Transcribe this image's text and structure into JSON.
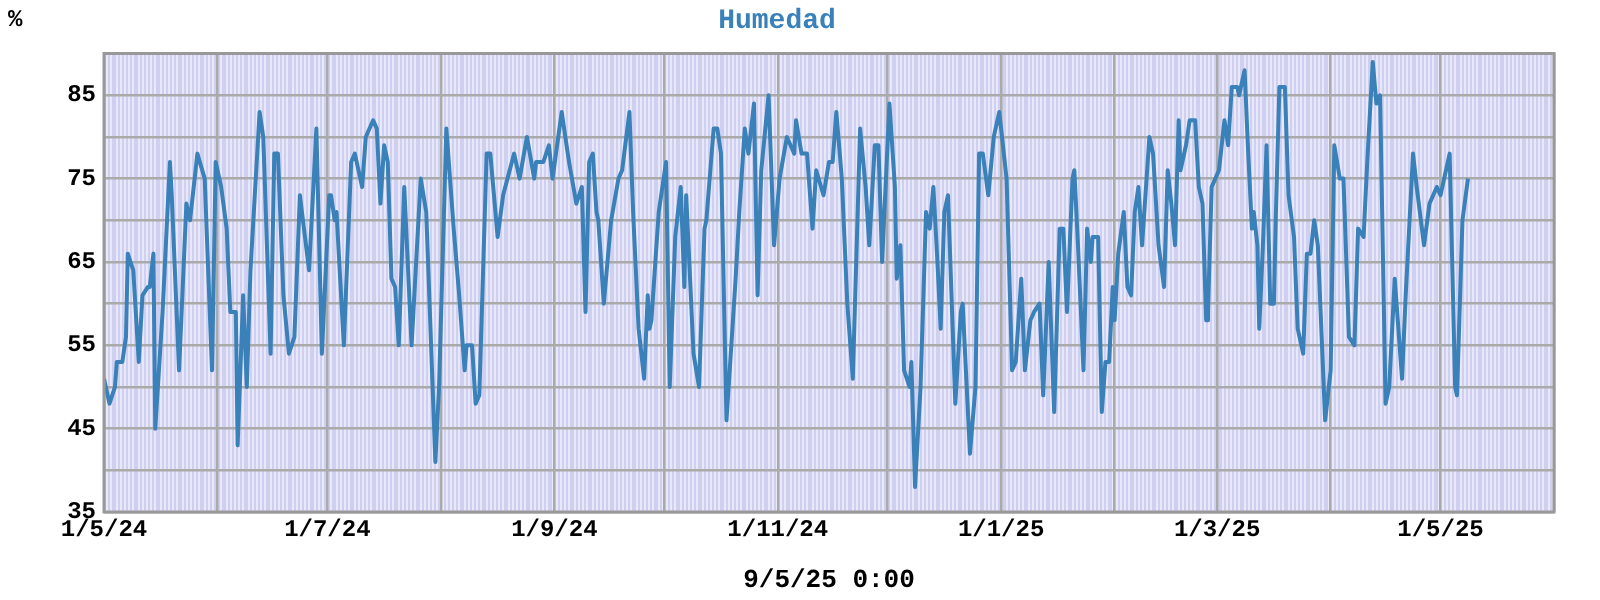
{
  "chart_data": {
    "type": "line",
    "title": "Humedad",
    "ylabel": "%",
    "xlabel": "9/5/25 0:00",
    "xlim": [
      "2024-05-01",
      "2025-06-01"
    ],
    "xticks": [
      {
        "value": "2024-05-01",
        "label": "1/5/24"
      },
      {
        "value": "2024-06-01",
        "label": null
      },
      {
        "value": "2024-07-01",
        "label": "1/7/24"
      },
      {
        "value": "2024-08-01",
        "label": null
      },
      {
        "value": "2024-09-01",
        "label": "1/9/24"
      },
      {
        "value": "2024-10-01",
        "label": null
      },
      {
        "value": "2024-11-01",
        "label": "1/11/24"
      },
      {
        "value": "2024-12-01",
        "label": null
      },
      {
        "value": "2025-01-01",
        "label": "1/1/25"
      },
      {
        "value": "2025-02-01",
        "label": null
      },
      {
        "value": "2025-03-01",
        "label": "1/3/25"
      },
      {
        "value": "2025-04-01",
        "label": null
      },
      {
        "value": "2025-05-01",
        "label": "1/5/25"
      }
    ],
    "ylim": [
      35,
      90
    ],
    "yticks": [
      35,
      {
        "value": 40,
        "label": null
      },
      45,
      {
        "value": 50,
        "label": null
      },
      55,
      {
        "value": 60,
        "label": null
      },
      65,
      {
        "value": 70,
        "label": null
      },
      75,
      {
        "value": 80,
        "label": null
      },
      85
    ],
    "grid": true,
    "marker": "none",
    "line_style": "solid",
    "series": [
      {
        "color": "#3a80b9",
        "x": [
          "2024-05-01",
          "2024-05-02T12:00",
          "2024-05-04",
          "2024-05-04T12:00",
          "2024-05-06",
          "2024-05-07",
          "2024-05-07T12:00",
          "2024-05-09",
          "2024-05-10T12:00",
          "2024-05-11T12:00",
          "2024-05-13",
          "2024-05-13T12:00",
          "2024-05-14T12:00",
          "2024-05-15",
          "2024-05-17",
          "2024-05-19",
          "2024-05-19T12:00",
          "2024-05-21T12:00",
          "2024-05-23T12:00",
          "2024-05-24T12:00",
          "2024-05-26T12:00",
          "2024-05-28T12:00",
          "2024-05-30T12:00",
          "2024-05-31T12:00",
          "2024-06-02",
          "2024-06-03T12:00",
          "2024-06-04T12:00",
          "2024-06-06",
          "2024-06-06T12:00",
          "2024-06-08",
          "2024-06-09",
          "2024-06-10",
          "2024-06-12T12:00",
          "2024-06-13T12:00",
          "2024-06-15T12:00",
          "2024-06-16T12:00",
          "2024-06-17T12:00",
          "2024-06-19",
          "2024-06-20T12:00",
          "2024-06-22",
          "2024-06-23T12:00",
          "2024-06-26",
          "2024-06-28",
          "2024-06-29T12:00",
          "2024-07-01T12:00",
          "2024-07-02",
          "2024-07-03",
          "2024-07-03T12:00",
          "2024-07-05T12:00",
          "2024-07-07T12:00",
          "2024-07-08T12:00",
          "2024-07-10T12:00",
          "2024-07-11T12:00",
          "2024-07-13T12:00",
          "2024-07-14T12:00",
          "2024-07-15T12:00",
          "2024-07-16T12:00",
          "2024-07-17T12:00",
          "2024-07-18T12:00",
          "2024-07-19T12:00",
          "2024-07-20T12:00",
          "2024-07-22",
          "2024-07-24",
          "2024-07-26T12:00",
          "2024-07-28",
          "2024-07-30T12:00",
          "2024-07-31T12:00",
          "2024-08-02T12:00",
          "2024-08-04T12:00",
          "2024-08-06",
          "2024-08-07T12:00",
          "2024-08-08",
          "2024-08-09T12:00",
          "2024-08-10T12:00",
          "2024-08-11T12:00",
          "2024-08-13T12:00",
          "2024-08-14T12:00",
          "2024-08-16T12:00",
          "2024-08-18",
          "2024-08-21",
          "2024-08-22T12:00",
          "2024-08-24T12:00",
          "2024-08-26T12:00",
          "2024-08-27",
          "2024-08-29",
          "2024-08-30T12:00",
          "2024-08-31T12:00",
          "2024-09-03",
          "2024-09-05",
          "2024-09-07",
          "2024-09-08T12:00",
          "2024-09-09T12:00",
          "2024-09-10T12:00",
          "2024-09-11T12:00",
          "2024-09-12T12:00",
          "2024-09-13",
          "2024-09-14T12:00",
          "2024-09-16T12:00",
          "2024-09-18T12:00",
          "2024-09-19T12:00",
          "2024-09-21T12:00",
          "2024-09-22T12:00",
          "2024-09-24",
          "2024-09-25T12:00",
          "2024-09-26T12:00",
          "2024-09-27",
          "2024-09-27T12:00",
          "2024-09-29T12:00",
          "2024-10-01T12:00",
          "2024-10-02T12:00",
          "2024-10-04",
          "2024-10-05T12:00",
          "2024-10-06T12:00",
          "2024-10-07",
          "2024-10-09",
          "2024-10-10T12:00",
          "2024-10-12",
          "2024-10-12T12:00",
          "2024-10-14T12:00",
          "2024-10-15T12:00",
          "2024-10-16T12:00",
          "2024-10-18",
          "2024-10-20T12:00",
          "2024-10-21T12:00",
          "2024-10-23",
          "2024-10-24",
          "2024-10-25T12:00",
          "2024-10-26T12:00",
          "2024-10-27T12:00",
          "2024-10-29T12:00",
          "2024-10-31",
          "2024-11-01T12:00",
          "2024-11-03T12:00",
          "2024-11-04T12:00",
          "2024-11-05T12:00",
          "2024-11-06",
          "2024-11-07T12:00",
          "2024-11-09",
          "2024-11-10T12:00",
          "2024-11-11T12:00",
          "2024-11-13T12:00",
          "2024-11-15",
          "2024-11-16",
          "2024-11-17",
          "2024-11-18T12:00",
          "2024-11-20",
          "2024-11-21T12:00",
          "2024-11-23T12:00",
          "2024-11-25",
          "2024-11-26",
          "2024-11-27T12:00",
          "2024-11-28T12:00",
          "2024-11-29T12:00",
          "2024-12-01T12:00",
          "2024-12-03",
          "2024-12-03T12:00",
          "2024-12-04T12:00",
          "2024-12-05T12:00",
          "2024-12-07",
          "2024-12-07T12:00",
          "2024-12-08T12:00",
          "2024-12-10",
          "2024-12-11T12:00",
          "2024-12-12T12:00",
          "2024-12-13T12:00",
          "2024-12-14T12:00",
          "2024-12-15T12:00",
          "2024-12-16T12:00",
          "2024-12-17T12:00",
          "2024-12-19T12:00",
          "2024-12-21",
          "2024-12-21T12:00",
          "2024-12-23T12:00",
          "2024-12-25",
          "2024-12-26",
          "2024-12-27",
          "2024-12-28T12:00",
          "2024-12-30",
          "2024-12-31T12:00",
          "2025-01-02T12:00",
          "2025-01-04",
          "2025-01-05",
          "2025-01-06T12:00",
          "2025-01-07T12:00",
          "2025-01-09",
          "2025-01-10",
          "2025-01-11T12:00",
          "2025-01-12T12:00",
          "2025-01-14",
          "2025-01-15T12:00",
          "2025-01-17",
          "2025-01-18",
          "2025-01-19",
          "2025-01-20T12:00",
          "2025-01-21",
          "2025-01-22",
          "2025-01-23T12:00",
          "2025-01-24T12:00",
          "2025-01-25T12:00",
          "2025-01-26",
          "2025-01-27T12:00",
          "2025-01-28T12:00",
          "2025-01-29T12:00",
          "2025-01-30T12:00",
          "2025-01-31T12:00",
          "2025-02-01",
          "2025-02-02",
          "2025-02-03T12:00",
          "2025-02-04T12:00",
          "2025-02-05T12:00",
          "2025-02-06T12:00",
          "2025-02-07T12:00",
          "2025-02-08T12:00",
          "2025-02-10T12:00",
          "2025-02-11T12:00",
          "2025-02-13",
          "2025-02-14T12:00",
          "2025-02-15T12:00",
          "2025-02-16T12:00",
          "2025-02-17T12:00",
          "2025-02-18T12:00",
          "2025-02-19",
          "2025-02-20T12:00",
          "2025-02-21T12:00",
          "2025-02-23",
          "2025-02-24",
          "2025-02-25",
          "2025-02-26",
          "2025-02-26T12:00",
          "2025-02-27T12:00",
          "2025-02-28T12:00",
          "2025-03-01T12:00",
          "2025-03-03",
          "2025-03-04",
          "2025-03-05",
          "2025-03-06T12:00",
          "2025-03-07",
          "2025-03-08T12:00",
          "2025-03-09T12:00",
          "2025-03-10T12:00",
          "2025-03-11",
          "2025-03-12",
          "2025-03-12T12:00",
          "2025-03-13T12:00",
          "2025-03-14T12:00",
          "2025-03-15T12:00",
          "2025-03-16T12:00",
          "2025-03-17",
          "2025-03-18",
          "2025-03-19T12:00",
          "2025-03-20T12:00",
          "2025-03-22",
          "2025-03-23",
          "2025-03-24T12:00",
          "2025-03-25T12:00",
          "2025-03-26T12:00",
          "2025-03-27T12:00",
          "2025-03-28T12:00",
          "2025-03-30T12:00",
          "2025-04-01",
          "2025-04-02",
          "2025-04-03T12:00",
          "2025-04-04T12:00",
          "2025-04-06",
          "2025-04-07T12:00",
          "2025-04-08T12:00",
          "2025-04-10",
          "2025-04-11",
          "2025-04-12T12:00",
          "2025-04-13T12:00",
          "2025-04-14T12:00",
          "2025-04-16",
          "2025-04-17",
          "2025-04-18T12:00",
          "2025-04-20T12:00",
          "2025-04-21T12:00",
          "2025-04-23T12:00",
          "2025-04-24T12:00",
          "2025-04-26T12:00",
          "2025-04-28",
          "2025-04-30",
          "2025-05-01",
          "2025-05-03T12:00",
          "2025-05-05",
          "2025-05-05T12:00",
          "2025-05-07",
          "2025-05-08T12:00"
        ],
        "values": [
          51,
          48,
          50,
          53,
          53,
          56,
          66,
          64,
          53,
          61,
          62,
          62,
          66,
          45,
          59,
          77,
          73,
          52,
          72,
          70,
          78,
          75,
          52,
          77,
          74,
          69,
          59,
          59,
          43,
          61,
          50,
          64,
          83,
          80,
          54,
          78,
          78,
          61,
          54,
          56,
          73,
          64,
          81,
          54,
          73,
          73,
          70,
          71,
          55,
          77,
          78,
          74,
          80,
          82,
          81,
          72,
          79,
          77,
          63,
          62,
          55,
          74,
          55,
          75,
          71,
          41,
          50,
          81,
          69,
          61,
          52,
          55,
          55,
          48,
          49,
          78,
          78,
          68,
          73,
          78,
          75,
          80,
          75,
          77,
          77,
          79,
          75,
          83,
          77,
          72,
          74,
          59,
          77,
          78,
          71,
          70,
          60,
          70,
          75,
          76,
          83,
          71,
          57,
          51,
          61,
          57,
          58,
          71,
          77,
          50,
          68,
          74,
          62,
          73,
          54,
          50,
          69,
          70,
          81,
          81,
          78,
          46,
          63,
          71,
          81,
          78,
          84,
          61,
          76,
          85,
          67,
          75,
          80,
          79,
          78,
          82,
          78,
          78,
          69,
          76,
          73,
          77,
          77,
          83,
          75,
          60,
          51,
          81,
          74,
          67,
          79,
          79,
          65,
          84,
          74,
          63,
          67,
          52,
          50,
          53,
          38,
          50,
          71,
          69,
          74,
          66,
          57,
          71,
          73,
          48,
          59,
          60,
          42,
          50,
          78,
          78,
          73,
          80,
          83,
          75,
          52,
          53,
          63,
          52,
          58,
          59,
          60,
          49,
          65,
          47,
          69,
          69,
          59,
          75,
          76,
          67,
          52,
          69,
          65,
          68,
          68,
          47,
          53,
          53,
          62,
          58,
          66,
          71,
          62,
          61,
          71,
          74,
          67,
          80,
          78,
          67,
          62,
          76,
          72,
          67,
          82,
          76,
          79,
          82,
          82,
          74,
          72,
          58,
          59,
          74,
          75,
          76,
          82,
          79,
          86,
          86,
          85,
          88,
          78,
          69,
          71,
          67,
          57,
          67,
          79,
          60,
          60,
          70,
          86,
          86,
          73,
          68,
          57,
          54,
          66,
          66,
          70,
          67,
          46,
          52,
          79,
          75,
          75,
          56,
          55,
          69,
          68,
          77,
          89,
          84,
          85,
          48,
          50,
          63,
          51,
          61,
          78,
          74,
          67,
          72,
          74,
          73,
          78,
          50,
          49,
          70,
          75
        ]
      }
    ]
  }
}
